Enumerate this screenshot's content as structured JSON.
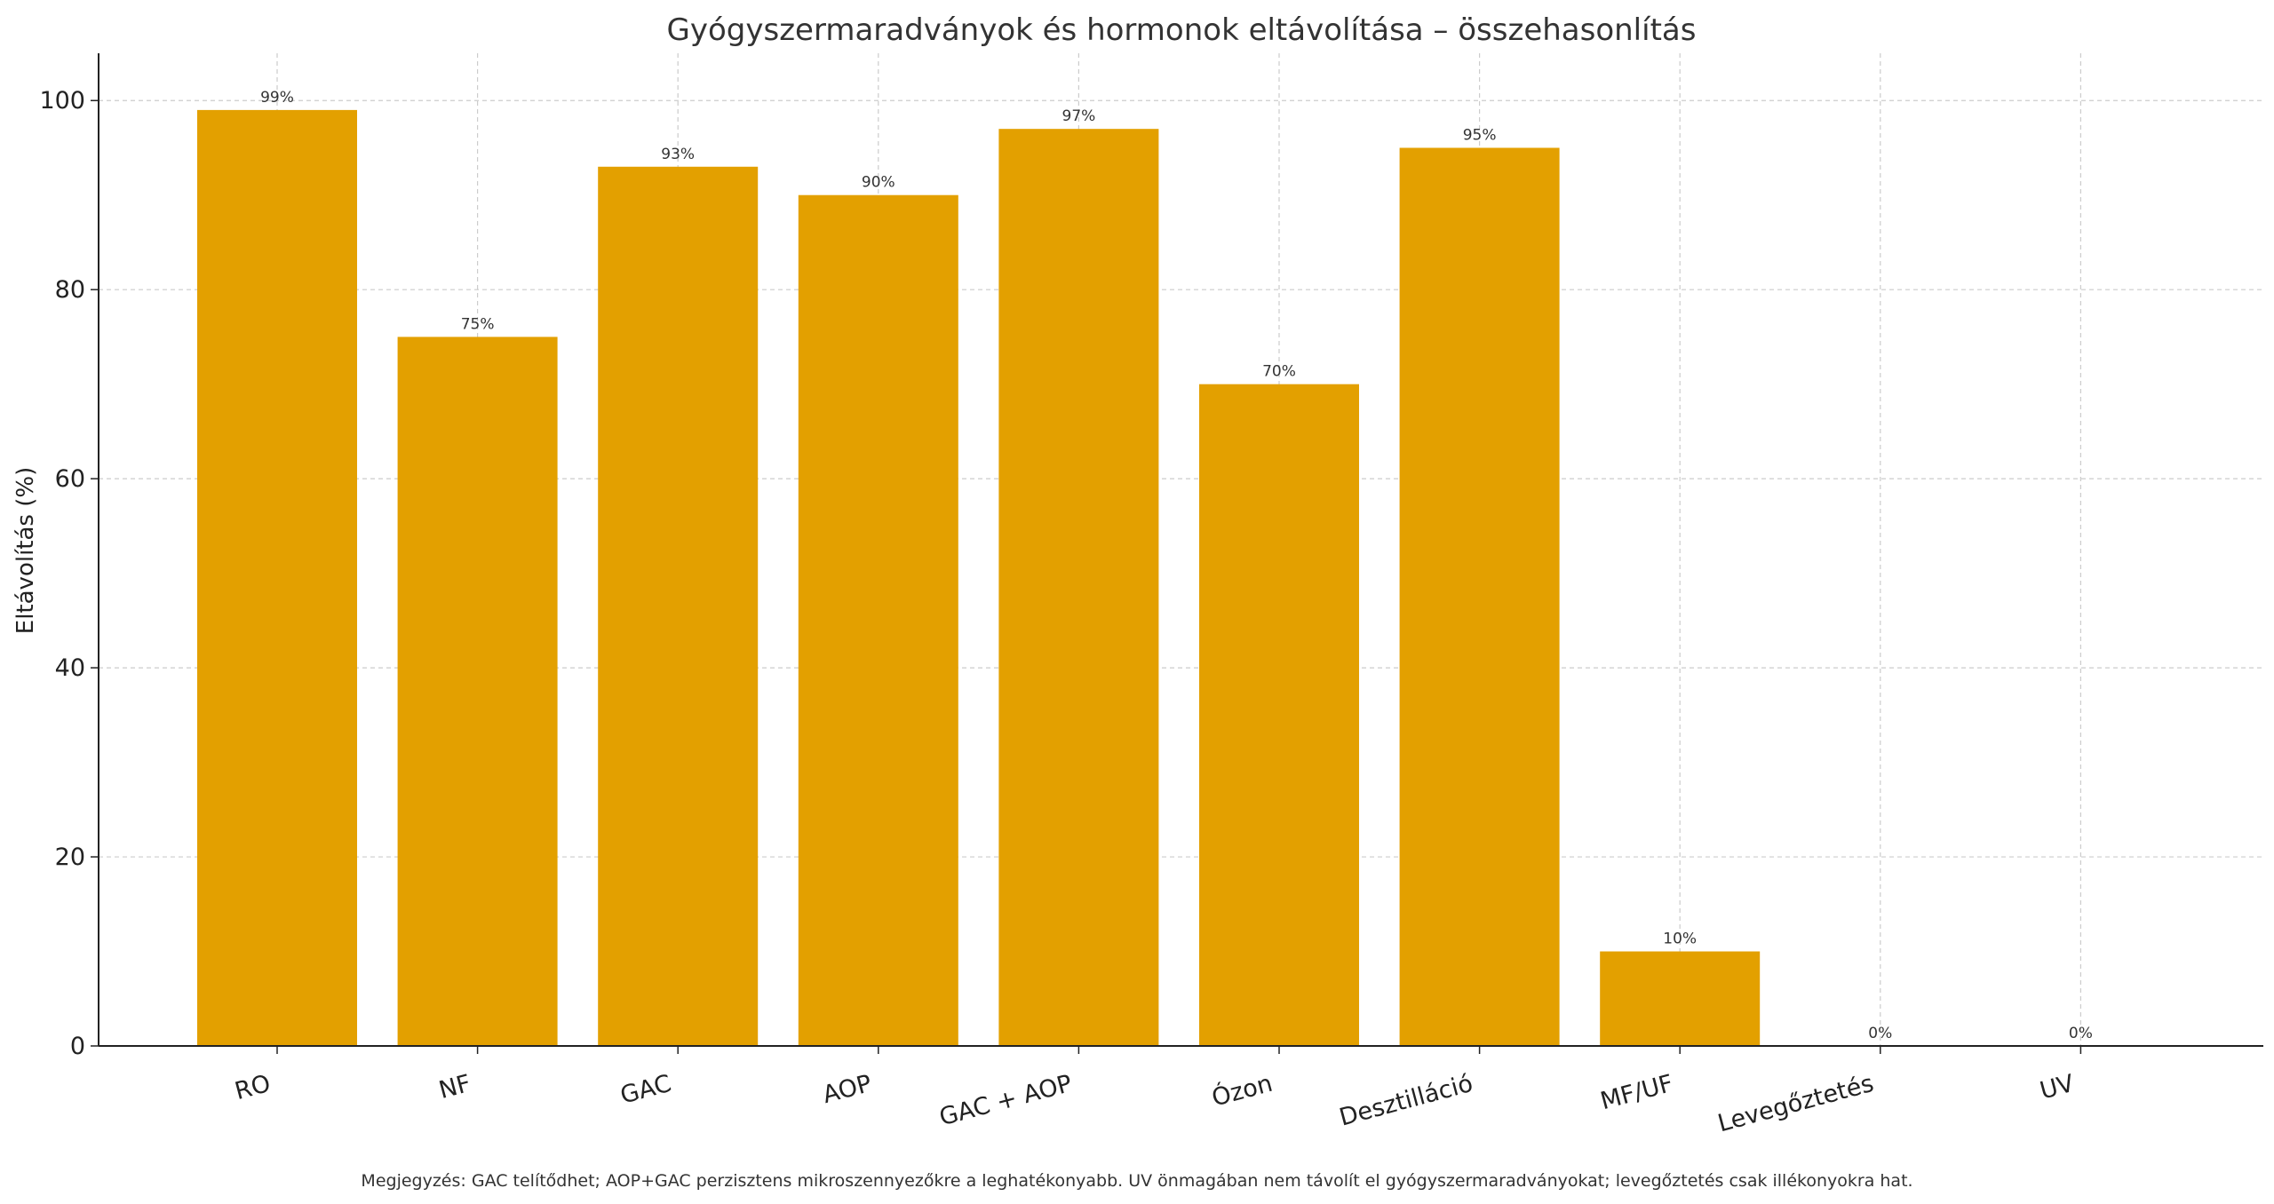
{
  "chart_data": {
    "type": "bar",
    "title": "Gyógyszermaradványok és hormonok eltávolítása – összehasonlítás",
    "xlabel": "",
    "ylabel": "Eltávolítás (%)",
    "categories": [
      "RO",
      "NF",
      "GAC",
      "AOP",
      "GAC + AOP",
      "Ózon",
      "Desztilláció",
      "MF/UF",
      "Levegőztetés",
      "UV"
    ],
    "values": [
      99,
      75,
      93,
      90,
      97,
      70,
      95,
      10,
      0,
      0
    ],
    "data_labels": [
      "99%",
      "75%",
      "93%",
      "90%",
      "97%",
      "70%",
      "95%",
      "10%",
      "0%",
      "0%"
    ],
    "ylim": [
      0,
      105
    ],
    "yticks": [
      0,
      20,
      40,
      60,
      80,
      100
    ],
    "ytick_labels": [
      "0",
      "20",
      "40",
      "60",
      "80",
      "100"
    ],
    "grid": true,
    "bar_color": "#E3A000",
    "note": "Megjegyzés: GAC telítődhet; AOP+GAC perzisztens mikroszennyezőkre a leghatékonyabb. UV önmagában nem távolít el gyógyszermaradványokat; levegőztetés csak illékonyokra hat."
  }
}
